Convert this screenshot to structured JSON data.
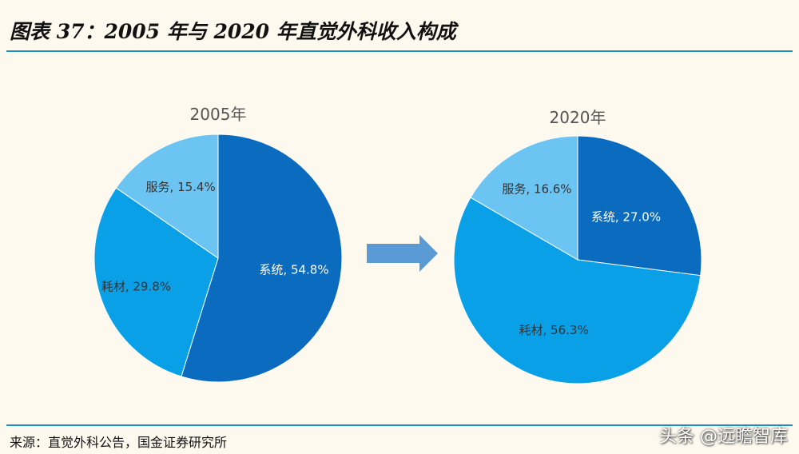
{
  "header": {
    "title": "图表 37：2005 年与 2020 年直觉外科收入构成"
  },
  "footer": {
    "source": "来源：直觉外科公告，国金证券研究所",
    "watermark": "头条 @远瞻智库"
  },
  "colors": {
    "background": "#fdf9ee",
    "rule": "#1e90c8",
    "arrow": "#5b9bd5"
  },
  "chart_data": [
    {
      "type": "pie",
      "title": "2005年",
      "slices": [
        {
          "name": "系统",
          "value": 54.8,
          "label": "系统, 54.8%",
          "color": "#0a6bbf",
          "label_color": "#ffffff"
        },
        {
          "name": "耗材",
          "value": 29.8,
          "label": "耗材, 29.8%",
          "color": "#0aa0e8",
          "label_color": "#333333"
        },
        {
          "name": "服务",
          "value": 15.4,
          "label": "服务, 15.4%",
          "color": "#6bc4f2",
          "label_color": "#333333"
        }
      ]
    },
    {
      "type": "pie",
      "title": "2020年",
      "slices": [
        {
          "name": "系统",
          "value": 27.0,
          "label": "系统, 27.0%",
          "color": "#0a6bbf",
          "label_color": "#ffffff"
        },
        {
          "name": "耗材",
          "value": 56.3,
          "label": "耗材, 56.3%",
          "color": "#0aa0e8",
          "label_color": "#333333"
        },
        {
          "name": "服务",
          "value": 16.6,
          "label": "服务, 16.6%",
          "color": "#6bc4f2",
          "label_color": "#333333"
        }
      ]
    }
  ]
}
